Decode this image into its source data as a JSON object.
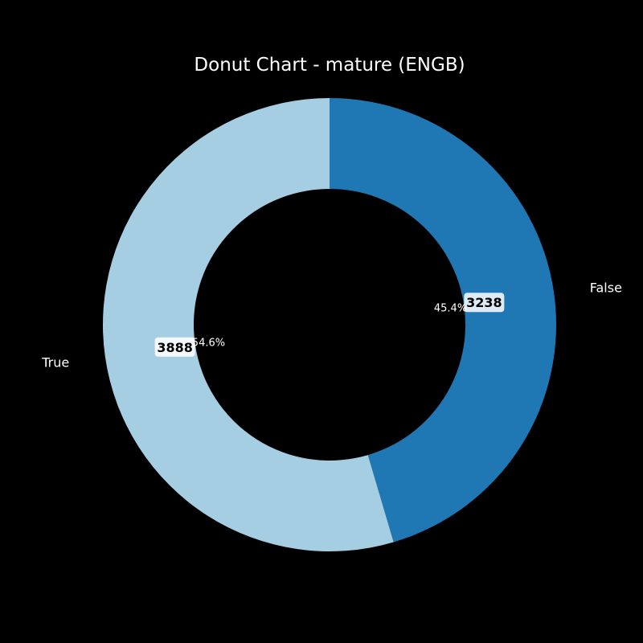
{
  "chart_data": {
    "type": "pie",
    "donut": true,
    "title": "Donut Chart - mature (ENGB)",
    "categories": [
      "False",
      "True"
    ],
    "values": [
      3238,
      3888
    ],
    "percent_labels": [
      "45.4%",
      "54.6%"
    ],
    "colors": [
      "#1f78b4",
      "#a6cee3"
    ],
    "start_angle_deg": 90,
    "direction": "clockwise",
    "legend": "none"
  },
  "colors": {
    "background": "#000000",
    "text": "#ffffff",
    "value_badge_bg": "#ffffff",
    "value_text": "#000000"
  }
}
